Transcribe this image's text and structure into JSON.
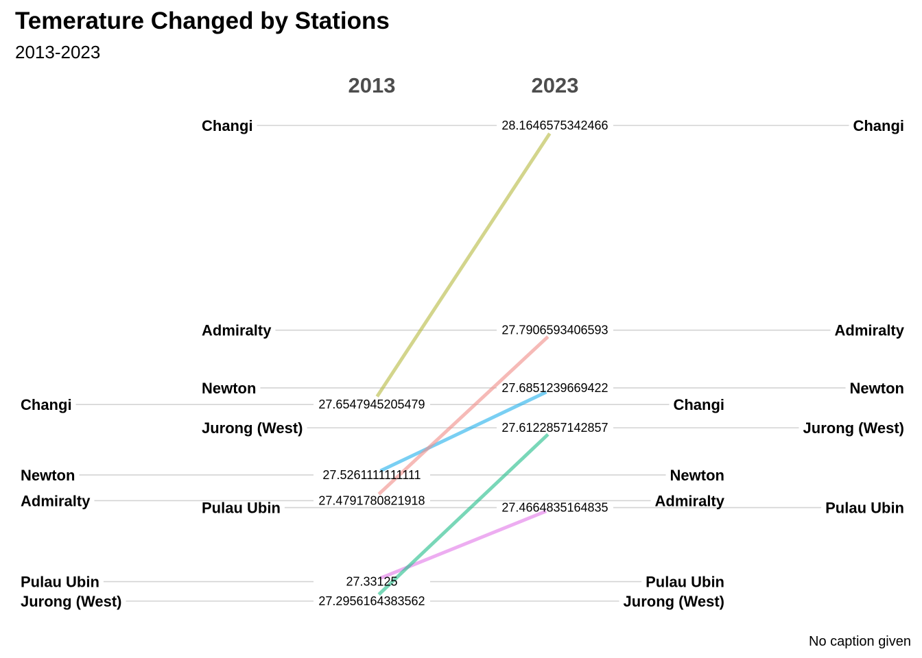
{
  "chart_data": {
    "type": "line",
    "title": "Temerature Changed by Stations",
    "subtitle": "2013-2023",
    "caption": "No caption given",
    "x": [
      "2013",
      "2023"
    ],
    "series": [
      {
        "name": "Changi",
        "values": [
          27.6547945205479,
          28.1646575342466
        ],
        "color": "#b8bc45"
      },
      {
        "name": "Newton",
        "values": [
          27.5261111111111,
          27.6851239669422
        ],
        "color": "#26b2eb"
      },
      {
        "name": "Admiralty",
        "values": [
          27.4791780821918,
          27.7906593406593
        ],
        "color": "#f08f8a"
      },
      {
        "name": "Pulau Ubin",
        "values": [
          27.33125,
          27.4664835164835
        ],
        "color": "#e27ae8"
      },
      {
        "name": "Jurong (West)",
        "values": [
          27.2956164383562,
          27.6122857142857
        ],
        "color": "#27be8c"
      }
    ],
    "value_labels_2013": [
      "27.6547945205479",
      "27.5261111111111",
      "27.4791780821918",
      "27.33125",
      "27.2956164383562"
    ],
    "value_labels_2023": [
      "28.1646575342466",
      "27.7906593406593",
      "27.6851239669422",
      "27.6122857142857",
      "27.4664835164835"
    ],
    "legend": "none",
    "grid": false
  }
}
